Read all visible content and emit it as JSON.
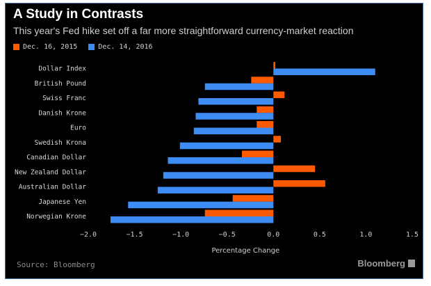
{
  "header": {
    "title": "A Study in Contrasts",
    "subtitle": "This year's Fed hike set off a far more straightforward currency-market reaction"
  },
  "footer": {
    "source": "Source: Bloomberg",
    "brand": "Bloomberg"
  },
  "colors": {
    "background": "#000000",
    "series_2015": "#ff5a00",
    "series_2016": "#3d8df5",
    "text": "#ffffff",
    "tick_text": "#d0d0d0",
    "muted": "#8a8a8a"
  },
  "chart_data": {
    "type": "bar",
    "orientation": "horizontal",
    "categories": [
      "Dollar Index",
      "British Pound",
      "Swiss Franc",
      "Danish Krone",
      "Euro",
      "Swedish Krona",
      "Canadian Dollar",
      "New Zealand Dollar",
      "Australian Dollar",
      "Japanese Yen",
      "Norwegian Krone"
    ],
    "series": [
      {
        "name": "Dec. 16, 2015",
        "color": "#ff5a00",
        "values": [
          0.02,
          -0.24,
          0.12,
          -0.18,
          -0.18,
          0.08,
          -0.34,
          0.45,
          0.56,
          -0.44,
          -0.74
        ]
      },
      {
        "name": "Dec. 14, 2016",
        "color": "#3d8df5",
        "values": [
          1.1,
          -0.74,
          -0.81,
          -0.84,
          -0.86,
          -1.01,
          -1.14,
          -1.19,
          -1.25,
          -1.57,
          -1.76
        ]
      }
    ],
    "title": "A Study in Contrasts",
    "xlabel": "Percentage Change",
    "ylabel": "",
    "xlim": [
      -2.0,
      1.5
    ],
    "xticks": [
      -2.0,
      -1.5,
      -1.0,
      -0.5,
      0,
      0.5,
      1.0,
      1.5
    ],
    "xtick_labels": [
      "−2.0",
      "−1.5",
      "−1.0",
      "−0.5",
      "0.0",
      "0.5",
      "1.0",
      "1.5"
    ],
    "grid": false,
    "legend_position": "top-left"
  }
}
